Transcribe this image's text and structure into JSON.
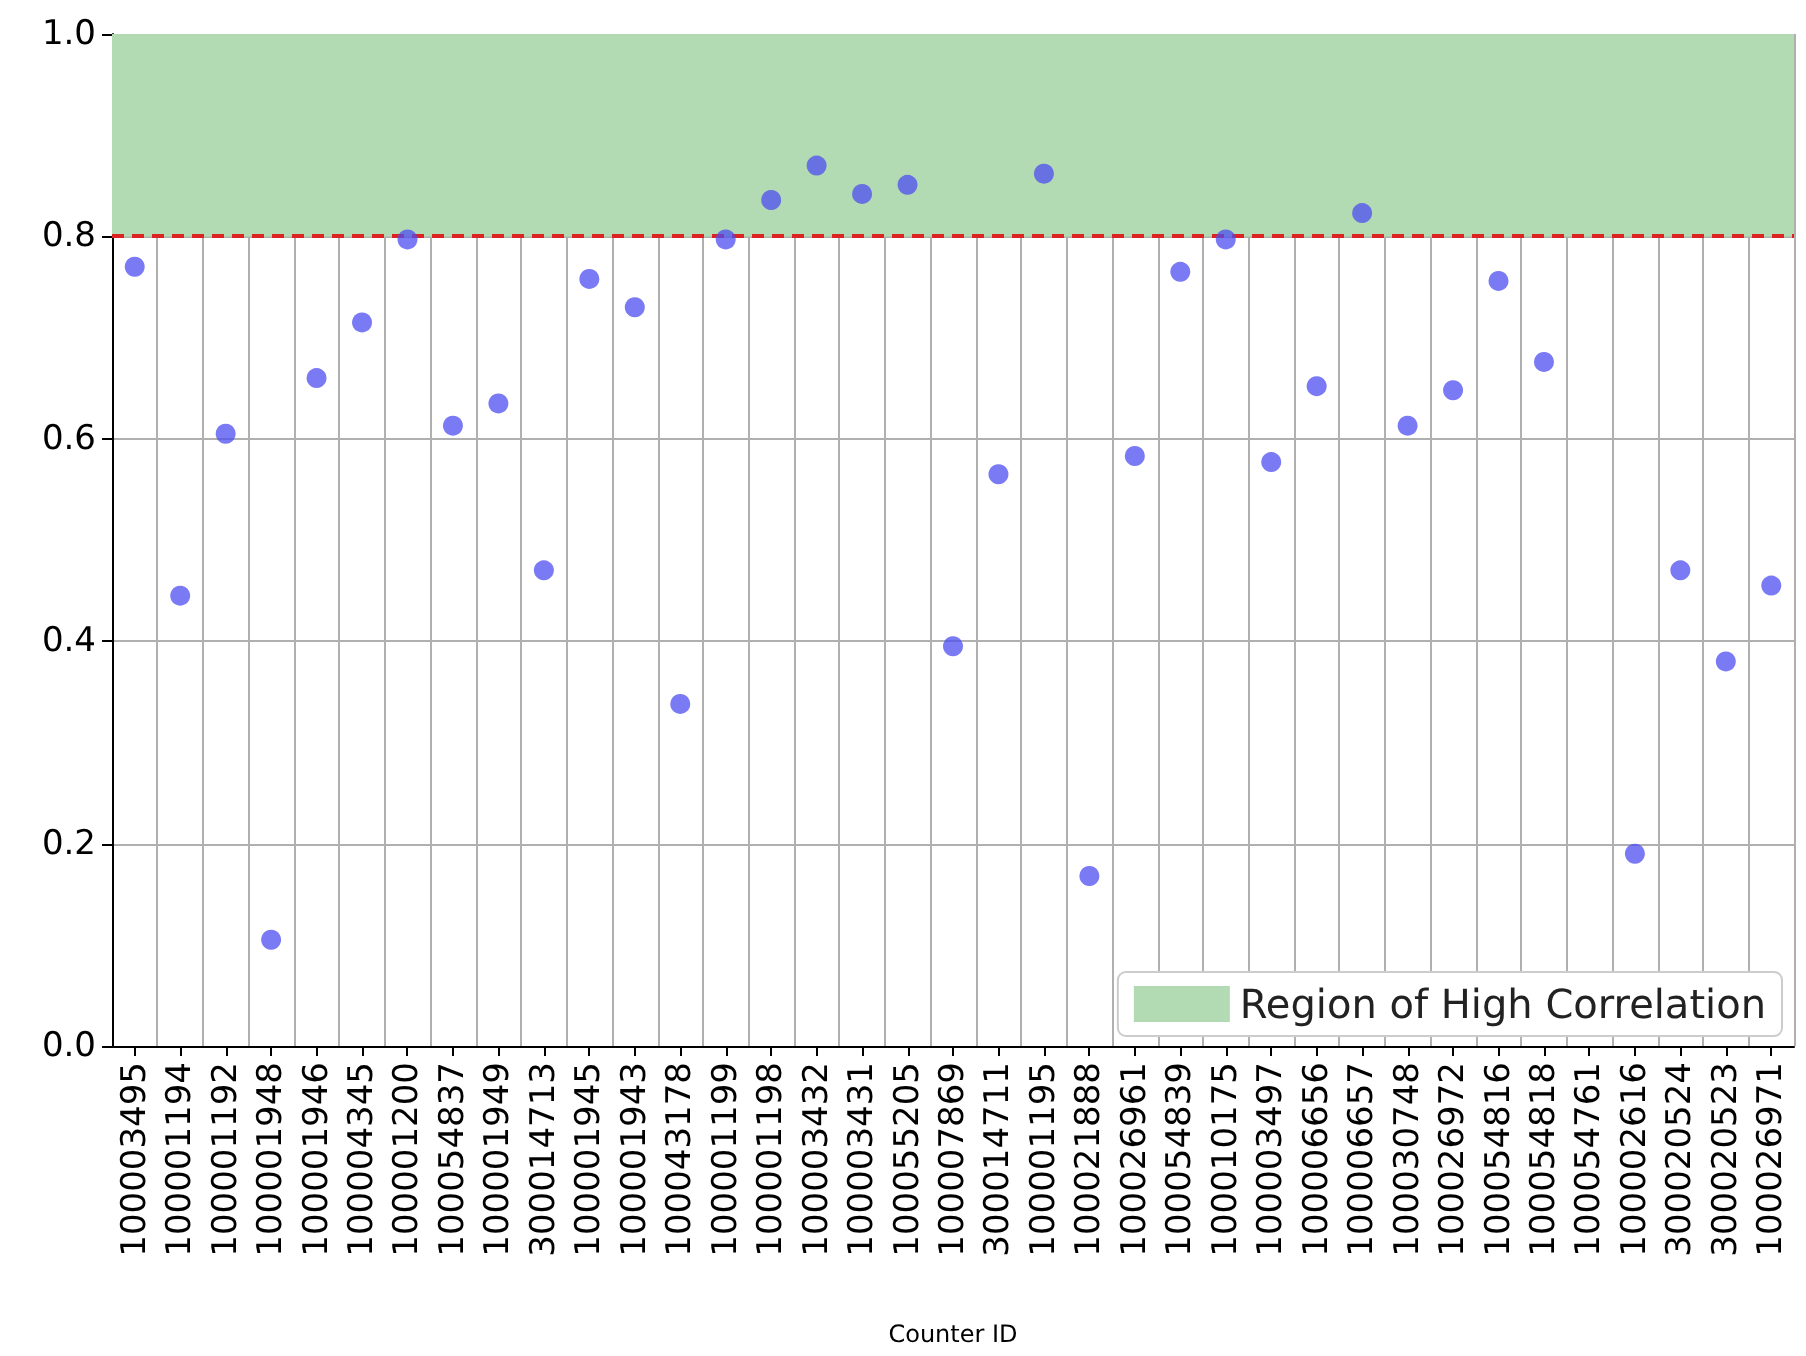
{
  "chart_data": {
    "type": "scatter",
    "xlabel": "Counter ID",
    "categories": [
      "100003495",
      "100001194",
      "100001192",
      "100001948",
      "100001946",
      "100004345",
      "100001200",
      "100054837",
      "100001949",
      "300014713",
      "100001945",
      "100001943",
      "100043178",
      "100001199",
      "100001198",
      "100003432",
      "100003431",
      "100055205",
      "100007869",
      "300014711",
      "100001195",
      "100021888",
      "100026961",
      "100054839",
      "100010175",
      "100003497",
      "100006656",
      "100006657",
      "100030748",
      "100026972",
      "100054816",
      "100054818",
      "100054761",
      "100002616",
      "300020524",
      "300020523",
      "100026971"
    ],
    "series": [
      {
        "color": "#4d4df2",
        "values": [
          0.77,
          0.445,
          0.605,
          0.105,
          0.66,
          0.715,
          0.797,
          0.613,
          0.635,
          0.47,
          0.758,
          0.73,
          0.338,
          0.797,
          0.836,
          0.87,
          0.842,
          0.851,
          0.395,
          0.565,
          0.862,
          0.168,
          0.583,
          0.765,
          0.797,
          0.577,
          0.652,
          0.823,
          0.613,
          0.648,
          0.756,
          0.676,
          null,
          0.19,
          0.47,
          0.38,
          0.455
        ]
      }
    ],
    "ylim": [
      0,
      1
    ],
    "yticks": [
      {
        "value": 0,
        "label": "0.0"
      },
      {
        "value": 0.2,
        "label": "0.2"
      },
      {
        "value": 0.4,
        "label": "0.4"
      },
      {
        "value": 0.6,
        "label": "0.6"
      },
      {
        "value": 0.8,
        "label": "0.8"
      },
      {
        "value": 1,
        "label": "1.0"
      }
    ],
    "bands": [
      {
        "axis": "y",
        "from": 0.8,
        "to": 1,
        "label": "Region of High Correlation",
        "color": "#b3dbb3"
      }
    ],
    "ref_lines": [
      {
        "axis": "y",
        "value": 0.8,
        "color": "#dd2222",
        "line_style": "dashed"
      }
    ],
    "grid": true,
    "legend": "bottom right",
    "marker": "circle"
  }
}
